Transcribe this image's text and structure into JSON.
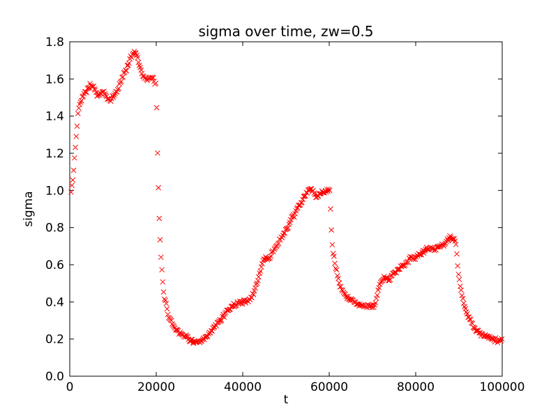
{
  "figure": {
    "background": "#ffffff",
    "axis_color": "#000000",
    "text_color": "#000000"
  },
  "chart_data": {
    "type": "scatter",
    "title": "sigma over time, zw=0.5",
    "xlabel": "t",
    "ylabel": "sigma",
    "xlim": [
      0,
      100000
    ],
    "ylim": [
      0.0,
      1.8
    ],
    "xticks": [
      0,
      20000,
      40000,
      60000,
      80000,
      100000
    ],
    "xtick_labels": [
      "0",
      "20000",
      "40000",
      "60000",
      "80000",
      "100000"
    ],
    "yticks": [
      0.0,
      0.2,
      0.4,
      0.6,
      0.8,
      1.0,
      1.2,
      1.4,
      1.6,
      1.8
    ],
    "ytick_labels": [
      "0.0",
      "0.2",
      "0.4",
      "0.6",
      "0.8",
      "1.0",
      "1.2",
      "1.4",
      "1.6",
      "1.8"
    ],
    "grid": false,
    "legend": "none",
    "marker": {
      "symbol": "x",
      "color": "#ff0000",
      "size": 7,
      "stroke_width": 1
    },
    "sampling": {
      "t_start": 300,
      "t_end": 100000,
      "t_step": 200,
      "noise_amp": 0.014,
      "seed": 42
    },
    "series": [
      {
        "name": "sigma",
        "keypoints": [
          [
            300,
            0.99
          ],
          [
            500,
            1.02
          ],
          [
            700,
            1.06
          ],
          [
            900,
            1.11
          ],
          [
            1100,
            1.17
          ],
          [
            1300,
            1.23
          ],
          [
            1500,
            1.29
          ],
          [
            1700,
            1.35
          ],
          [
            1900,
            1.41
          ],
          [
            2100,
            1.45
          ],
          [
            2500,
            1.48
          ],
          [
            3000,
            1.51
          ],
          [
            3600,
            1.53
          ],
          [
            4200,
            1.55
          ],
          [
            4800,
            1.57
          ],
          [
            5400,
            1.56
          ],
          [
            6000,
            1.53
          ],
          [
            6600,
            1.51
          ],
          [
            7200,
            1.52
          ],
          [
            7800,
            1.53
          ],
          [
            8400,
            1.51
          ],
          [
            9000,
            1.48
          ],
          [
            9600,
            1.49
          ],
          [
            10200,
            1.51
          ],
          [
            10800,
            1.53
          ],
          [
            11400,
            1.56
          ],
          [
            12000,
            1.6
          ],
          [
            12600,
            1.63
          ],
          [
            13200,
            1.66
          ],
          [
            13800,
            1.7
          ],
          [
            14400,
            1.73
          ],
          [
            15000,
            1.75
          ],
          [
            15600,
            1.72
          ],
          [
            16200,
            1.67
          ],
          [
            16800,
            1.63
          ],
          [
            17400,
            1.6
          ],
          [
            18000,
            1.59
          ],
          [
            18600,
            1.61
          ],
          [
            19200,
            1.6
          ],
          [
            19800,
            1.58
          ],
          [
            20000,
            1.57
          ],
          [
            20200,
            1.3
          ],
          [
            20400,
            1.09
          ],
          [
            20600,
            0.92
          ],
          [
            20800,
            0.78
          ],
          [
            21000,
            0.68
          ],
          [
            21200,
            0.6
          ],
          [
            21400,
            0.53
          ],
          [
            21600,
            0.48
          ],
          [
            21800,
            0.44
          ],
          [
            22200,
            0.39
          ],
          [
            22700,
            0.34
          ],
          [
            23300,
            0.3
          ],
          [
            24000,
            0.27
          ],
          [
            24800,
            0.25
          ],
          [
            25700,
            0.23
          ],
          [
            26700,
            0.215
          ],
          [
            27700,
            0.2
          ],
          [
            28600,
            0.185
          ],
          [
            29500,
            0.18
          ],
          [
            30400,
            0.185
          ],
          [
            31200,
            0.2
          ],
          [
            32000,
            0.22
          ],
          [
            33000,
            0.25
          ],
          [
            34000,
            0.28
          ],
          [
            35000,
            0.31
          ],
          [
            36000,
            0.34
          ],
          [
            37000,
            0.365
          ],
          [
            38000,
            0.385
          ],
          [
            39000,
            0.395
          ],
          [
            40000,
            0.4
          ],
          [
            41000,
            0.405
          ],
          [
            42000,
            0.42
          ],
          [
            42700,
            0.46
          ],
          [
            43400,
            0.51
          ],
          [
            44100,
            0.57
          ],
          [
            44700,
            0.62
          ],
          [
            45300,
            0.64
          ],
          [
            45900,
            0.63
          ],
          [
            46500,
            0.65
          ],
          [
            47200,
            0.68
          ],
          [
            48000,
            0.71
          ],
          [
            48800,
            0.74
          ],
          [
            49600,
            0.77
          ],
          [
            50400,
            0.8
          ],
          [
            51200,
            0.84
          ],
          [
            52000,
            0.87
          ],
          [
            52800,
            0.91
          ],
          [
            53600,
            0.94
          ],
          [
            54400,
            0.97
          ],
          [
            55200,
            1.0
          ],
          [
            55800,
            1.01
          ],
          [
            56400,
            0.99
          ],
          [
            57000,
            0.96
          ],
          [
            57600,
            0.97
          ],
          [
            58200,
            1.0
          ],
          [
            58800,
            0.99
          ],
          [
            59400,
            1.0
          ],
          [
            60100,
            1.0
          ],
          [
            60300,
            0.9
          ],
          [
            60500,
            0.79
          ],
          [
            60700,
            0.71
          ],
          [
            60900,
            0.66
          ],
          [
            61200,
            0.62
          ],
          [
            61500,
            0.58
          ],
          [
            61900,
            0.54
          ],
          [
            62300,
            0.5
          ],
          [
            62800,
            0.47
          ],
          [
            63400,
            0.445
          ],
          [
            64100,
            0.425
          ],
          [
            65000,
            0.41
          ],
          [
            66000,
            0.395
          ],
          [
            67000,
            0.39
          ],
          [
            68000,
            0.38
          ],
          [
            69000,
            0.375
          ],
          [
            69800,
            0.375
          ],
          [
            70600,
            0.385
          ],
          [
            71000,
            0.42
          ],
          [
            71400,
            0.47
          ],
          [
            71800,
            0.5
          ],
          [
            72300,
            0.52
          ],
          [
            73000,
            0.53
          ],
          [
            73700,
            0.52
          ],
          [
            74400,
            0.54
          ],
          [
            75200,
            0.56
          ],
          [
            76200,
            0.58
          ],
          [
            77200,
            0.6
          ],
          [
            78200,
            0.62
          ],
          [
            79000,
            0.64
          ],
          [
            79600,
            0.63
          ],
          [
            80400,
            0.65
          ],
          [
            81200,
            0.66
          ],
          [
            82000,
            0.675
          ],
          [
            82800,
            0.685
          ],
          [
            83600,
            0.69
          ],
          [
            84400,
            0.68
          ],
          [
            85200,
            0.7
          ],
          [
            86000,
            0.7
          ],
          [
            86800,
            0.71
          ],
          [
            87400,
            0.73
          ],
          [
            88000,
            0.755
          ],
          [
            88400,
            0.73
          ],
          [
            88900,
            0.745
          ],
          [
            89300,
            0.72
          ],
          [
            89600,
            0.63
          ],
          [
            89900,
            0.55
          ],
          [
            90200,
            0.5
          ],
          [
            90500,
            0.46
          ],
          [
            90800,
            0.42
          ],
          [
            91100,
            0.39
          ],
          [
            91500,
            0.36
          ],
          [
            92000,
            0.33
          ],
          [
            92500,
            0.3
          ],
          [
            93100,
            0.28
          ],
          [
            93800,
            0.255
          ],
          [
            94600,
            0.235
          ],
          [
            95500,
            0.22
          ],
          [
            96400,
            0.21
          ],
          [
            97300,
            0.205
          ],
          [
            98200,
            0.195
          ],
          [
            99100,
            0.19
          ],
          [
            100000,
            0.2
          ]
        ]
      }
    ]
  }
}
